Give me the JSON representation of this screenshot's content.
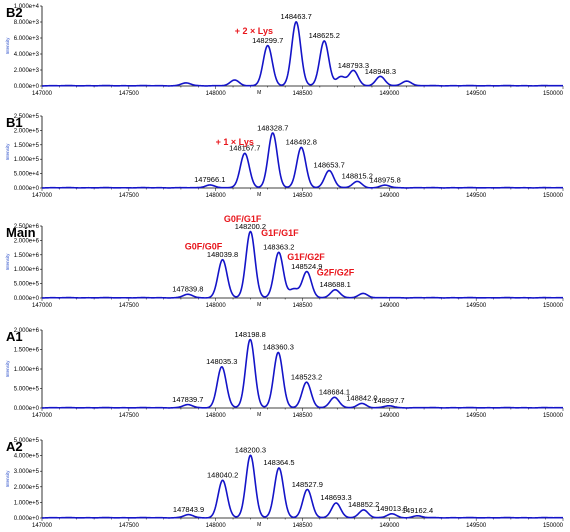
{
  "chart_data": [
    {
      "type": "line",
      "panel_label": "B2",
      "ylabel": "Intensity",
      "xlim": [
        147000,
        150000
      ],
      "x_ticks": [
        "147000",
        "147500",
        "148000",
        "148500",
        "149000",
        "149500",
        "150000"
      ],
      "y_ticks": [
        "0.000e+0",
        "2.000e+3",
        "4.000e+3",
        "6.000e+3",
        "8.000e+3",
        "1.000e+4"
      ],
      "ylim": [
        0,
        10000
      ],
      "peaks": [
        {
          "x": 147830,
          "y": 350
        },
        {
          "x": 148110,
          "y": 700
        },
        {
          "x": 148299.7,
          "y": 5000
        },
        {
          "x": 148463.7,
          "y": 8000
        },
        {
          "x": 148625.2,
          "y": 5600
        },
        {
          "x": 148720,
          "y": 1100
        },
        {
          "x": 148793.3,
          "y": 1900
        },
        {
          "x": 148948.3,
          "y": 1150
        },
        {
          "x": 149100,
          "y": 600
        }
      ],
      "peak_labels": [
        {
          "x": 148299.7,
          "y": 5000,
          "text": "148299.7"
        },
        {
          "x": 148463.7,
          "y": 8000,
          "text": "148463.7"
        },
        {
          "x": 148625.2,
          "y": 5600,
          "text": "148625.2"
        },
        {
          "x": 148793.3,
          "y": 1900,
          "text": "148793.3"
        },
        {
          "x": 148948.3,
          "y": 1150,
          "text": "148948.3"
        }
      ],
      "annotations": [
        {
          "text": "+ 2 × Lys",
          "x": 148220,
          "y": 6500
        }
      ]
    },
    {
      "type": "line",
      "panel_label": "B1",
      "ylabel": "Intensity",
      "xlim": [
        147000,
        150000
      ],
      "x_ticks": [
        "147000",
        "147500",
        "148000",
        "148500",
        "149000",
        "149500",
        "150000"
      ],
      "y_ticks": [
        "0.000e+0",
        "5.000e+4",
        "1.000e+5",
        "1.500e+5",
        "2.000e+5",
        "2.500e+5"
      ],
      "ylim": [
        0,
        250000
      ],
      "peaks": [
        {
          "x": 147966.1,
          "y": 10000
        },
        {
          "x": 148167.7,
          "y": 120000
        },
        {
          "x": 148328.7,
          "y": 190000
        },
        {
          "x": 148492.8,
          "y": 140000
        },
        {
          "x": 148653.7,
          "y": 60000
        },
        {
          "x": 148815.2,
          "y": 22000
        },
        {
          "x": 148975.8,
          "y": 9000
        }
      ],
      "peak_labels": [
        {
          "x": 147966.1,
          "y": 10000,
          "text": "147966.1"
        },
        {
          "x": 148167.7,
          "y": 120000,
          "text": "148167.7"
        },
        {
          "x": 148328.7,
          "y": 190000,
          "text": "148328.7"
        },
        {
          "x": 148492.8,
          "y": 140000,
          "text": "148492.8"
        },
        {
          "x": 148653.7,
          "y": 60000,
          "text": "148653.7"
        },
        {
          "x": 148815.2,
          "y": 22000,
          "text": "148815.2"
        },
        {
          "x": 148975.8,
          "y": 9000,
          "text": "148975.8"
        }
      ],
      "annotations": [
        {
          "text": "+ 1 × Lys",
          "x": 148110,
          "y": 150000
        }
      ]
    },
    {
      "type": "line",
      "panel_label": "Main",
      "ylabel": "Intensity",
      "xlim": [
        147000,
        150000
      ],
      "x_ticks": [
        "147000",
        "147500",
        "148000",
        "148500",
        "149000",
        "149500",
        "150000"
      ],
      "y_ticks": [
        "0.000e+0",
        "5.000e+5",
        "1.000e+6",
        "1.500e+6",
        "2.000e+6",
        "2.500e+6"
      ],
      "ylim": [
        0,
        2500000
      ],
      "peaks": [
        {
          "x": 147839.8,
          "y": 120000
        },
        {
          "x": 148039.8,
          "y": 1320000
        },
        {
          "x": 148200.2,
          "y": 2300000
        },
        {
          "x": 148363.2,
          "y": 1580000
        },
        {
          "x": 148450,
          "y": 300000
        },
        {
          "x": 148524.9,
          "y": 900000
        },
        {
          "x": 148688.1,
          "y": 280000
        },
        {
          "x": 148850,
          "y": 150000
        }
      ],
      "peak_labels": [
        {
          "x": 147839.8,
          "y": 120000,
          "text": "147839.8"
        },
        {
          "x": 148039.8,
          "y": 1320000,
          "text": "148039.8"
        },
        {
          "x": 148200.2,
          "y": 2300000,
          "text": "148200.2"
        },
        {
          "x": 148363.2,
          "y": 1580000,
          "text": "148363.2"
        },
        {
          "x": 148524.9,
          "y": 900000,
          "text": "148524.9"
        },
        {
          "x": 148688.1,
          "y": 280000,
          "text": "148688.1"
        }
      ],
      "annotations": [
        {
          "text": "G0F/G0F",
          "x": 147930,
          "y": 1680000
        },
        {
          "text": "G0F/G1F",
          "x": 148155,
          "y": 2640000
        },
        {
          "text": "G1F/G1F",
          "x": 148370,
          "y": 2160000
        },
        {
          "text": "G1F/G2F",
          "x": 148520,
          "y": 1320000
        },
        {
          "text": "G2F/G2F",
          "x": 148690,
          "y": 780000
        }
      ]
    },
    {
      "type": "line",
      "panel_label": "A1",
      "ylabel": "Intensity",
      "xlim": [
        147000,
        150000
      ],
      "x_ticks": [
        "147000",
        "147500",
        "148000",
        "148500",
        "149000",
        "149500",
        "150000"
      ],
      "y_ticks": [
        "0.000e+0",
        "5.000e+5",
        "1.000e+6",
        "1.500e+6",
        "2.000e+6"
      ],
      "ylim": [
        0,
        2000000
      ],
      "peaks": [
        {
          "x": 147839.7,
          "y": 80000
        },
        {
          "x": 148035.3,
          "y": 1050000
        },
        {
          "x": 148198.8,
          "y": 1750000
        },
        {
          "x": 148360.3,
          "y": 1420000
        },
        {
          "x": 148523.2,
          "y": 650000
        },
        {
          "x": 148684.1,
          "y": 270000
        },
        {
          "x": 148842.0,
          "y": 110000
        },
        {
          "x": 148997.7,
          "y": 50000
        }
      ],
      "peak_labels": [
        {
          "x": 147839.7,
          "y": 80000,
          "text": "147839.7"
        },
        {
          "x": 148035.3,
          "y": 1050000,
          "text": "148035.3"
        },
        {
          "x": 148198.8,
          "y": 1750000,
          "text": "148198.8"
        },
        {
          "x": 148360.3,
          "y": 1420000,
          "text": "148360.3"
        },
        {
          "x": 148523.2,
          "y": 650000,
          "text": "148523.2"
        },
        {
          "x": 148684.1,
          "y": 270000,
          "text": "148684.1"
        },
        {
          "x": 148842.0,
          "y": 110000,
          "text": "148842.0"
        },
        {
          "x": 148997.7,
          "y": 50000,
          "text": "148997.7"
        }
      ],
      "annotations": []
    },
    {
      "type": "line",
      "panel_label": "A2",
      "ylabel": "Intensity",
      "xlim": [
        147000,
        150000
      ],
      "x_ticks": [
        "147000",
        "147500",
        "148000",
        "148500",
        "149000",
        "149500",
        "150000"
      ],
      "y_ticks": [
        "0.000e+0",
        "1.000e+5",
        "2.000e+5",
        "3.000e+5",
        "4.000e+5",
        "5.000e+5"
      ],
      "ylim": [
        0,
        500000
      ],
      "peaks": [
        {
          "x": 147843.9,
          "y": 20000
        },
        {
          "x": 148040.2,
          "y": 240000
        },
        {
          "x": 148200.3,
          "y": 400000
        },
        {
          "x": 148364.5,
          "y": 320000
        },
        {
          "x": 148527.9,
          "y": 180000
        },
        {
          "x": 148693.3,
          "y": 95000
        },
        {
          "x": 148852.2,
          "y": 50000
        },
        {
          "x": 149013.8,
          "y": 25000
        },
        {
          "x": 149162.4,
          "y": 12000
        }
      ],
      "peak_labels": [
        {
          "x": 147843.9,
          "y": 20000,
          "text": "147843.9"
        },
        {
          "x": 148040.2,
          "y": 240000,
          "text": "148040.2"
        },
        {
          "x": 148200.3,
          "y": 400000,
          "text": "148200.3"
        },
        {
          "x": 148364.5,
          "y": 320000,
          "text": "148364.5"
        },
        {
          "x": 148527.9,
          "y": 180000,
          "text": "148527.9"
        },
        {
          "x": 148693.3,
          "y": 95000,
          "text": "148693.3"
        },
        {
          "x": 148852.2,
          "y": 50000,
          "text": "148852.2"
        },
        {
          "x": 149013.8,
          "y": 25000,
          "text": "149013.8"
        },
        {
          "x": 149162.4,
          "y": 12000,
          "text": "149162.4"
        }
      ],
      "annotations": []
    }
  ],
  "style": {
    "trace_color": "#1414c8",
    "annotation_color": "#e8151b",
    "axis_color": "#000000"
  },
  "axis_marker": "M"
}
